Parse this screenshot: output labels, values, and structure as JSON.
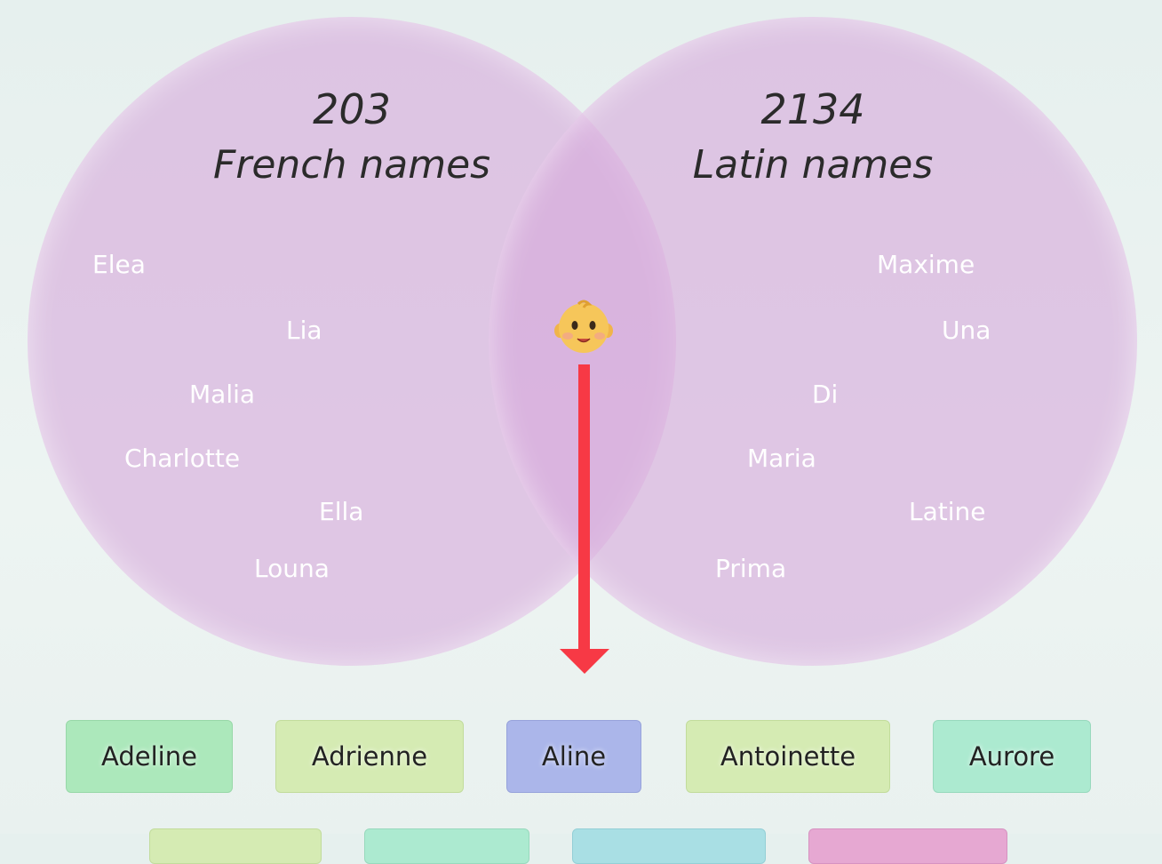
{
  "venn": {
    "left": {
      "count": "203",
      "label": "French names",
      "names": [
        "Elea",
        "Lia",
        "Malia",
        "Charlotte",
        "Ella",
        "Louna"
      ]
    },
    "right": {
      "count": "2134",
      "label": "Latin names",
      "names": [
        "Maxime",
        "Una",
        "Di",
        "Maria",
        "Latine",
        "Prima"
      ]
    },
    "center_icon": "baby-emoji-icon"
  },
  "results": {
    "row1": [
      "Adeline",
      "Adrienne",
      "Aline",
      "Antoinette",
      "Aurore"
    ],
    "selected": "Aline"
  },
  "colors": {
    "circle": "#d7aadc",
    "arrow": "#f73945",
    "chip_green": "#ace8bb",
    "chip_lime": "#d5ebb3",
    "chip_blue": "#abb6ea",
    "chip_mint": "#acead0",
    "chip_pink": "#e6a8d2",
    "chip_cyan": "#a9dfe4"
  }
}
